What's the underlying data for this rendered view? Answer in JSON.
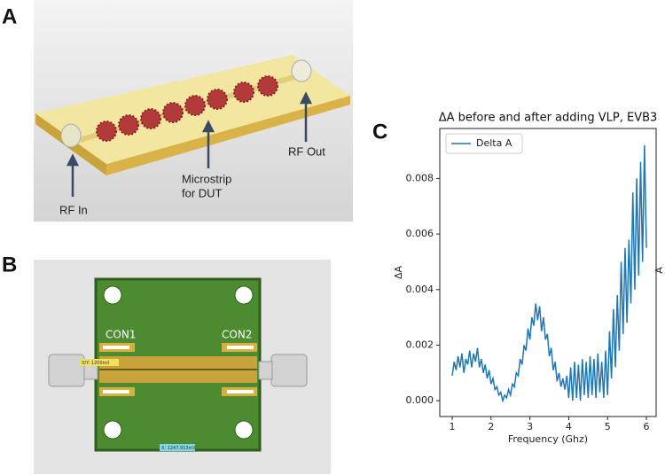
{
  "figure": {
    "panel_a": {
      "label": "A",
      "rf_in": "RF In",
      "microstrip": [
        "Microstrip",
        "for DUT"
      ],
      "rf_out": "RF Out"
    },
    "panel_b": {
      "label": "B",
      "con1": "CON1",
      "con2": "CON2",
      "dim_y": "X/Y: 1200mil",
      "dim_x": "X: 1247.913mil"
    },
    "panel_c": {
      "label": "C"
    }
  },
  "chart_data": {
    "type": "line",
    "title": "ΔA before and after adding VLP, EVB3",
    "xlabel": "Frequency (Ghz)",
    "ylabel": "ΔA",
    "y2label": "A",
    "xlim": [
      0.68,
      6.25
    ],
    "ylim": [
      -0.00057,
      0.0098
    ],
    "xticks": [
      1,
      2,
      3,
      4,
      5,
      6
    ],
    "yticks": [
      {
        "value": 0,
        "label": "0.000"
      },
      {
        "value": 0.002,
        "label": "0.002"
      },
      {
        "value": 0.004,
        "label": "0.004"
      },
      {
        "value": 0.006,
        "label": "0.006"
      },
      {
        "value": 0.008,
        "label": "0.008"
      }
    ],
    "legend": "upper left",
    "x": [
      1,
      1.05,
      1.1,
      1.15,
      1.2,
      1.25,
      1.3,
      1.35,
      1.4,
      1.45,
      1.5,
      1.55,
      1.6,
      1.65,
      1.7,
      1.75,
      1.8,
      1.85,
      1.9,
      1.95,
      2,
      2.05,
      2.1,
      2.15,
      2.2,
      2.25,
      2.3,
      2.35,
      2.4,
      2.45,
      2.5,
      2.55,
      2.6,
      2.65,
      2.7,
      2.75,
      2.8,
      2.85,
      2.9,
      2.95,
      3,
      3.05,
      3.1,
      3.15,
      3.2,
      3.25,
      3.3,
      3.35,
      3.4,
      3.45,
      3.5,
      3.55,
      3.6,
      3.65,
      3.7,
      3.75,
      3.8,
      3.85,
      3.9,
      3.95,
      4,
      4.05,
      4.1,
      4.15,
      4.2,
      4.25,
      4.3,
      4.35,
      4.4,
      4.45,
      4.5,
      4.55,
      4.6,
      4.65,
      4.7,
      4.75,
      4.8,
      4.85,
      4.9,
      4.95,
      5,
      5.05,
      5.1,
      5.15,
      5.2,
      5.25,
      5.3,
      5.35,
      5.4,
      5.45,
      5.5,
      5.55,
      5.6,
      5.65,
      5.7,
      5.75,
      5.8,
      5.85,
      5.9,
      5.95,
      6
    ],
    "series": [
      {
        "name": "Delta A",
        "color": "#1f77b4",
        "values": [
          0.0009,
          0.0014,
          0.0011,
          0.0016,
          0.0012,
          0.0017,
          0.001,
          0.0015,
          0.0013,
          0.0018,
          0.0012,
          0.0017,
          0.0014,
          0.0019,
          0.0012,
          0.0015,
          0.001,
          0.0013,
          0.0008,
          0.0011,
          0.0006,
          0.0008,
          0.0004,
          0.0005,
          0.0002,
          0.0003,
          0,
          0.0002,
          0.0001,
          0.0004,
          0.0002,
          0.0006,
          0.0005,
          0.001,
          0.0009,
          0.0015,
          0.0013,
          0.002,
          0.0018,
          0.0026,
          0.0022,
          0.003,
          0.0027,
          0.0035,
          0.0029,
          0.0034,
          0.0025,
          0.003,
          0.0022,
          0.0024,
          0.0016,
          0.0019,
          0.0011,
          0.0014,
          0.0007,
          0.001,
          0.0005,
          0.0008,
          0.0004,
          0.0009,
          0.0001,
          0.0012,
          0,
          0.0014,
          0.0001,
          0.0013,
          0,
          0.0015,
          0.0002,
          0.0014,
          0.0001,
          0.0016,
          0.0002,
          0.0015,
          0.0001,
          0.0017,
          0.0003,
          0.0014,
          0.0001,
          0.0018,
          0.0002,
          0.0025,
          0.0008,
          0.0033,
          0.0012,
          0.0038,
          0.0018,
          0.005,
          0.0024,
          0.0055,
          0.0028,
          0.0058,
          0.0035,
          0.0075,
          0.004,
          0.008,
          0.0045,
          0.0086,
          0.005,
          0.0092,
          0.0055
        ]
      }
    ]
  }
}
